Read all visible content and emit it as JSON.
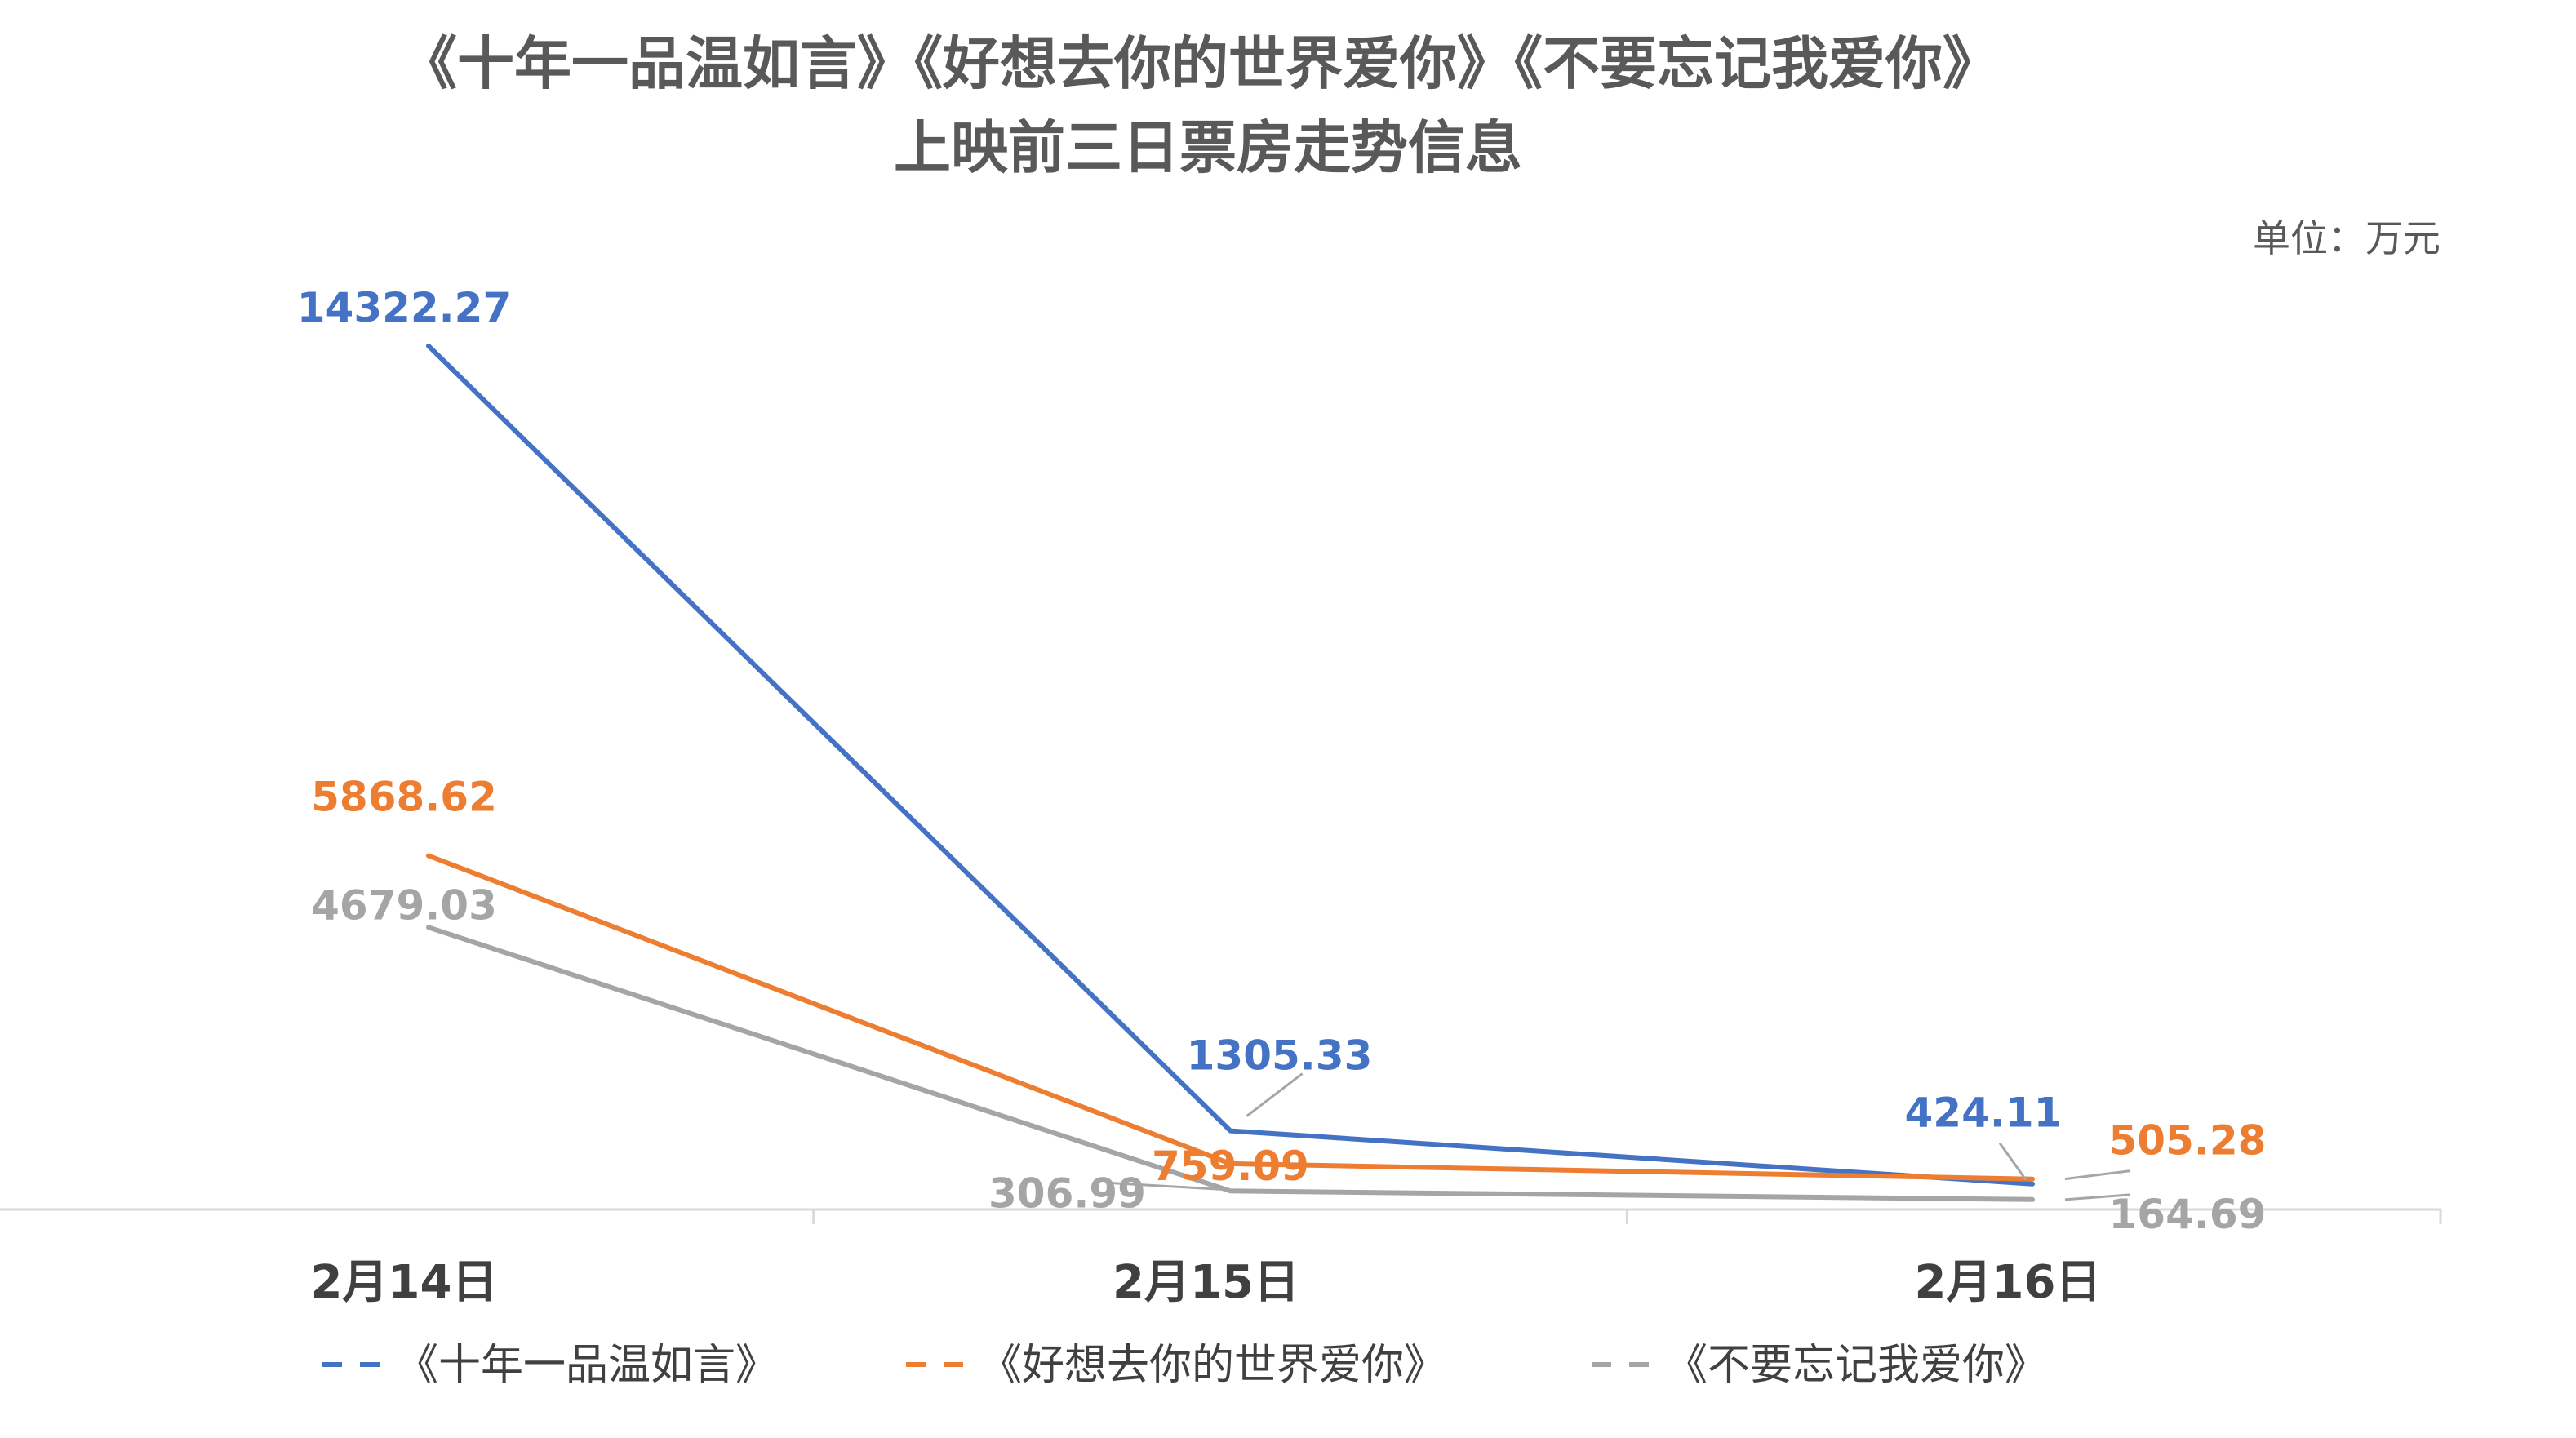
{
  "chart_data": {
    "type": "line",
    "title_line1": "《十年一品温如言》《好想去你的世界爱你》《不要忘记我爱你》",
    "title_line2": "上映前三日票房走势信息",
    "unit": "单位：万元",
    "categories": [
      "2月14日",
      "2月15日",
      "2月16日"
    ],
    "ylim": [
      0,
      16000
    ],
    "grid": false,
    "legend_position": "bottom",
    "series": [
      {
        "name": "《十年一品温如言》",
        "values": [
          14322.27,
          1305.33,
          424.11
        ],
        "labels": [
          "14322.27",
          "1305.33",
          "424.11"
        ],
        "color": "#4472C4"
      },
      {
        "name": "《好想去你的世界爱你》",
        "values": [
          5868.62,
          759.09,
          505.28
        ],
        "labels": [
          "5868.62",
          "759.09",
          "505.28"
        ],
        "color": "#ED7D31"
      },
      {
        "name": "《不要忘记我爱你》",
        "values": [
          4679.03,
          306.99,
          164.69
        ],
        "labels": [
          "4679.03",
          "306.99",
          "164.69"
        ],
        "color": "#A5A5A5"
      }
    ]
  }
}
